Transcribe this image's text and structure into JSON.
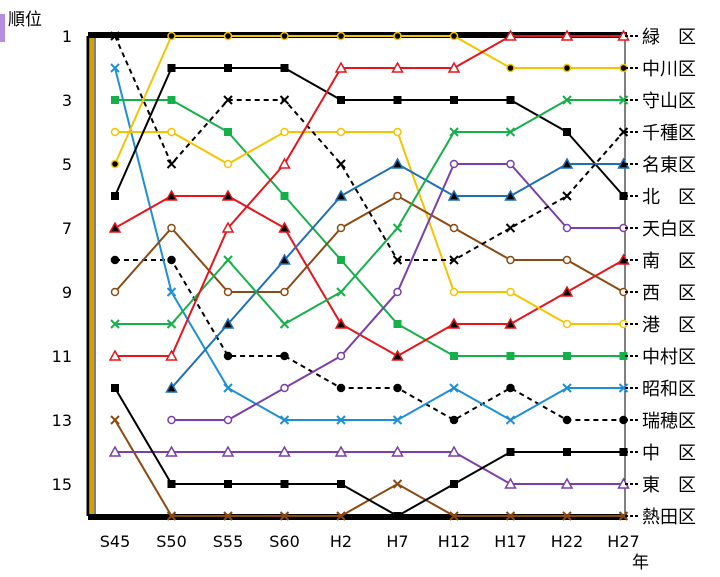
{
  "chart_data": {
    "type": "line",
    "title": "",
    "ylabel": "順位",
    "xlabel": "年",
    "x": [
      "S45",
      "S50",
      "S55",
      "S60",
      "H2",
      "H7",
      "H12",
      "H17",
      "H22",
      "H27"
    ],
    "y_ticks": [
      "1",
      "3",
      "5",
      "7",
      "9",
      "11",
      "13",
      "15"
    ],
    "ylim": [
      16,
      1
    ],
    "y_inverted": true,
    "grid": false,
    "legend": "right, ward names beside final ranks",
    "series": [
      {
        "name": "緑区",
        "label": "緑　区",
        "color": "#e8141c",
        "marker": "triangle",
        "values": [
          11,
          11,
          7,
          5,
          2,
          2,
          2,
          1,
          1,
          1
        ]
      },
      {
        "name": "中川区",
        "label": "中川区",
        "color": "#f5c400",
        "marker": "dot",
        "values": [
          5,
          1,
          1,
          1,
          1,
          1,
          1,
          2,
          2,
          2
        ]
      },
      {
        "name": "守山区",
        "label": "守山区",
        "color": "#16b04a",
        "marker": "x",
        "values": [
          10,
          10,
          8,
          10,
          9,
          7,
          4,
          4,
          3,
          3
        ]
      },
      {
        "name": "千種区",
        "label": "千種区",
        "color": "#000000",
        "marker": "x",
        "dashed": true,
        "values": [
          1,
          5,
          3,
          3,
          5,
          8,
          8,
          7,
          6,
          4
        ]
      },
      {
        "name": "名東区",
        "label": "名東区",
        "color": "#1f6fb5",
        "marker": "triangle-filled",
        "values": [
          null,
          12,
          10,
          8,
          6,
          5,
          6,
          6,
          5,
          5
        ]
      },
      {
        "name": "北区",
        "label": "北　区",
        "color": "#000000",
        "marker": "square",
        "values": [
          6,
          2,
          2,
          2,
          3,
          3,
          3,
          3,
          4,
          6
        ]
      },
      {
        "name": "天白区",
        "label": "天白区",
        "color": "#7b3fa8",
        "marker": "circle",
        "values": [
          null,
          13,
          13,
          12,
          11,
          9,
          5,
          5,
          7,
          7
        ]
      },
      {
        "name": "西区",
        "label": "西　区",
        "color": "#8b4a12",
        "marker": "circle",
        "values": [
          9,
          7,
          9,
          9,
          7,
          6,
          7,
          8,
          8,
          9
        ]
      },
      {
        "name": "港区",
        "label": "港　区",
        "color": "#f5c400",
        "marker": "circle",
        "values": [
          4,
          4,
          5,
          4,
          4,
          4,
          9,
          9,
          10,
          10
        ]
      },
      {
        "name": "南区",
        "label": "南　区",
        "color": "#e8141c",
        "marker": "triangle-filled",
        "values": [
          7,
          6,
          6,
          7,
          10,
          11,
          10,
          10,
          9,
          8
        ]
      },
      {
        "name": "中村区",
        "label": "中村区",
        "color": "#16b04a",
        "marker": "square",
        "values": [
          3,
          3,
          4,
          6,
          8,
          10,
          11,
          11,
          11,
          11
        ]
      },
      {
        "name": "昭和区",
        "label": "昭和区",
        "color": "#1f8fd5",
        "marker": "x",
        "values": [
          2,
          9,
          12,
          13,
          13,
          13,
          12,
          13,
          12,
          12
        ]
      },
      {
        "name": "瑞穂区",
        "label": "瑞穂区",
        "color": "#000000",
        "marker": "dot",
        "dashed": true,
        "values": [
          8,
          8,
          11,
          11,
          12,
          12,
          13,
          12,
          13,
          13
        ]
      },
      {
        "name": "中区",
        "label": "中　区",
        "color": "#000000",
        "marker": "square",
        "values": [
          12,
          15,
          15,
          15,
          15,
          16,
          15,
          14,
          14,
          14
        ]
      },
      {
        "name": "東区",
        "label": "東　区",
        "color": "#7b3fa8",
        "marker": "triangle",
        "values": [
          14,
          14,
          14,
          14,
          14,
          14,
          14,
          15,
          15,
          15
        ]
      },
      {
        "name": "熱田区",
        "label": "熱田区",
        "color": "#8b4a12",
        "marker": "x",
        "values": [
          13,
          16,
          16,
          16,
          16,
          15,
          16,
          16,
          16,
          16
        ]
      }
    ]
  }
}
